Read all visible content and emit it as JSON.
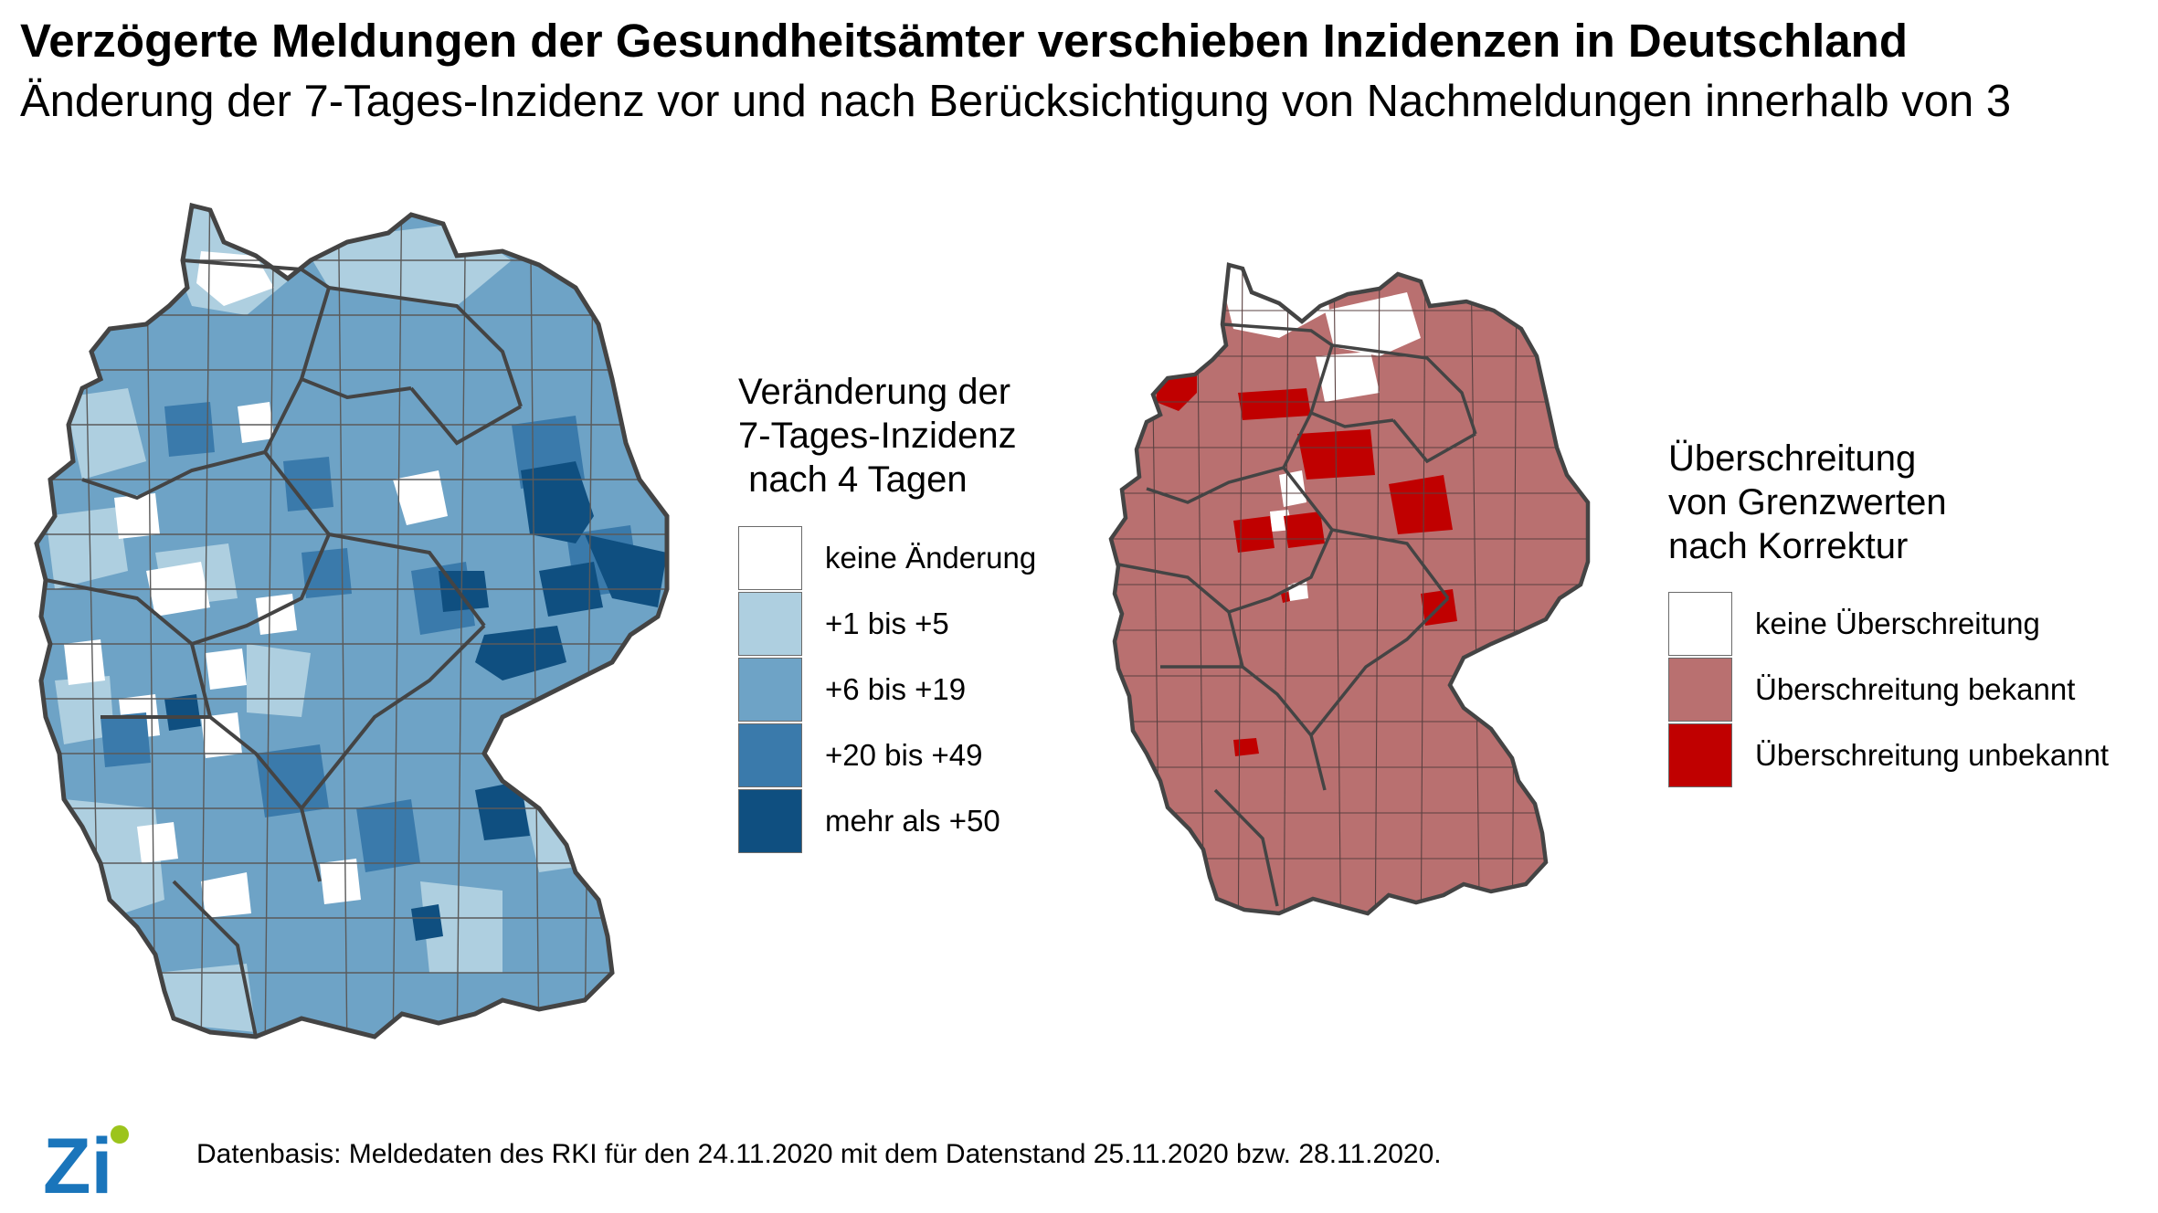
{
  "title": "Verzögerte Meldungen der Gesundheitsämter verschieben Inzidenzen in Deutschland",
  "subtitle": "Änderung der 7-Tages-Inzidenz vor und nach Berücksichtigung von Nachmeldungen innerhalb von 3",
  "left_legend": {
    "title": "Veränderung der\n7-Tages-Inzidenz\n nach 4 Tagen",
    "items": [
      {
        "label": "keine Änderung",
        "color": "#ffffff"
      },
      {
        "label": "+1 bis +5",
        "color": "#aecfe0"
      },
      {
        "label": "+6 bis +19",
        "color": "#6ea3c6"
      },
      {
        "label": "+20 bis +49",
        "color": "#3a7aab"
      },
      {
        "label": "mehr als +50",
        "color": "#0f4f80"
      }
    ]
  },
  "right_legend": {
    "title": "Überschreitung\nvon Grenzwerten\nnach Korrektur",
    "items": [
      {
        "label": "keine Überschreitung",
        "color": "#ffffff"
      },
      {
        "label": "Überschreitung bekannt",
        "color": "#b97070"
      },
      {
        "label": "Überschreitung unbekannt",
        "color": "#c00000"
      }
    ]
  },
  "footer": "Datenbasis: Meldedaten des RKI für den 24.11.2020 mit dem Datenstand 25.11.2020 bzw. 28.11.2020.",
  "logo": {
    "text": "Zi",
    "text_color": "#1a75bb",
    "dot_color": "#9cc41c"
  },
  "colors": {
    "border": "#555555",
    "district_line": "#3f3f3f"
  }
}
